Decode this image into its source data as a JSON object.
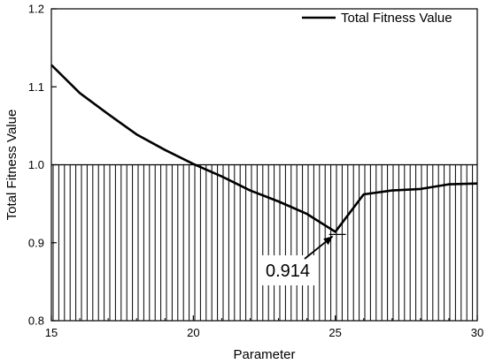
{
  "chart_data": {
    "type": "line",
    "xlabel": "Parameter",
    "ylabel": "Total Fitness Value",
    "xlim": [
      15,
      30
    ],
    "ylim": [
      0.8,
      1.2
    ],
    "xticks": [
      "15",
      "20",
      "25",
      "30"
    ],
    "yticks": [
      "0.8",
      "0.9",
      "1.0",
      "1.1",
      "1.2"
    ],
    "legend": {
      "position": "top-right"
    },
    "series": [
      {
        "name": "Total Fitness Value",
        "color": "#000000",
        "x": [
          15,
          16,
          17,
          18,
          19,
          20,
          21,
          22,
          23,
          24,
          25,
          26,
          27,
          28,
          29,
          30
        ],
        "y": [
          1.128,
          1.092,
          1.065,
          1.039,
          1.019,
          1.001,
          0.985,
          0.967,
          0.953,
          0.937,
          0.914,
          0.962,
          0.967,
          0.969,
          0.975,
          0.976
        ]
      }
    ],
    "threshold": {
      "y": 1.0
    },
    "hatched_region": {
      "y_from": 0.8,
      "y_to": 1.0,
      "style": "vertical-lines"
    },
    "annotation": {
      "text": "0.914",
      "x": 25,
      "y": 0.914
    }
  }
}
